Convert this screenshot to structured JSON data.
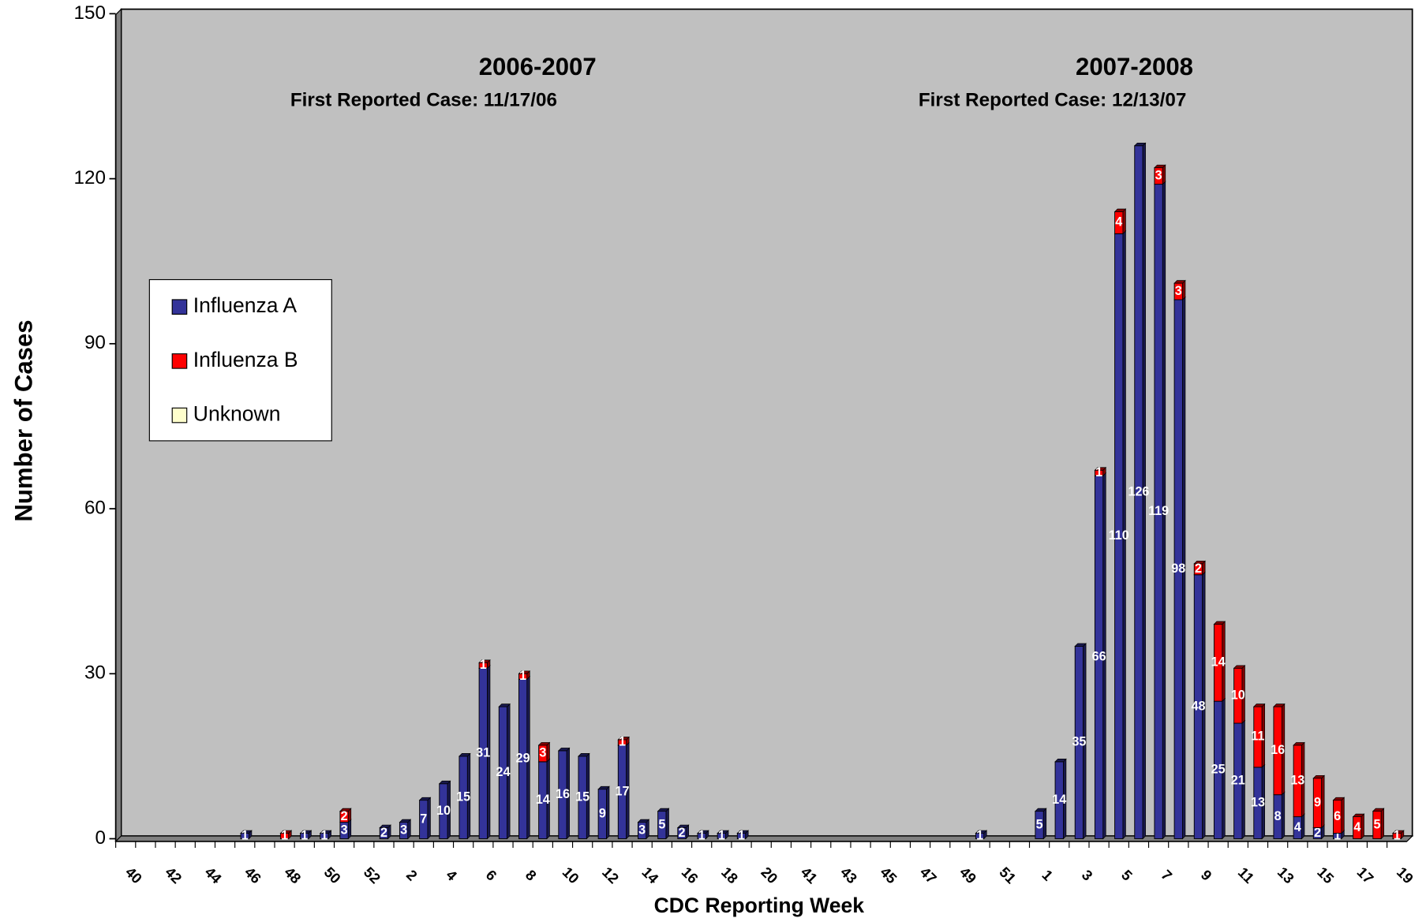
{
  "chart_data": {
    "type": "stacked_bar",
    "annotations": [
      "2006-2007",
      "First Reported Case:  11/17/06",
      "2007-2008",
      "First Reported Case:  12/13/07"
    ],
    "x_label": "CDC Reporting Week",
    "y_label": "Number of Cases",
    "categories": [
      "40",
      null,
      "42",
      null,
      "44",
      null,
      "46",
      null,
      "48",
      null,
      "50",
      null,
      "52",
      null,
      "2",
      null,
      "4",
      null,
      "6",
      null,
      "8",
      null,
      "10",
      null,
      "12",
      null,
      "14",
      null,
      "16",
      null,
      "18",
      null,
      "20",
      null,
      "41",
      null,
      "43",
      null,
      "45",
      null,
      "47",
      null,
      "49",
      null,
      "51",
      null,
      "1",
      null,
      "3",
      null,
      "5",
      null,
      "7",
      null,
      "9",
      null,
      "11",
      null,
      "13",
      null,
      "15",
      null,
      "17",
      null,
      "19"
    ],
    "series": [
      {
        "name": "Influenza A",
        "color": "#333399",
        "values": [
          0,
          0,
          0,
          0,
          0,
          0,
          1,
          0,
          0,
          1,
          1,
          3,
          0,
          2,
          3,
          7,
          10,
          15,
          31,
          24,
          29,
          14,
          16,
          15,
          9,
          17,
          3,
          5,
          2,
          1,
          1,
          1,
          0,
          0,
          0,
          0,
          0,
          0,
          0,
          0,
          0,
          0,
          0,
          1,
          0,
          0,
          5,
          14,
          35,
          66,
          110,
          126,
          119,
          98,
          48,
          25,
          21,
          13,
          8,
          4,
          2,
          1,
          0,
          0,
          0
        ]
      },
      {
        "name": "Influenza B",
        "color": "#ff0000",
        "values": [
          0,
          0,
          0,
          0,
          0,
          0,
          0,
          0,
          1,
          0,
          0,
          2,
          0,
          0,
          0,
          0,
          0,
          0,
          1,
          0,
          1,
          3,
          0,
          0,
          0,
          1,
          0,
          0,
          0,
          0,
          0,
          0,
          0,
          0,
          0,
          0,
          0,
          0,
          0,
          0,
          0,
          0,
          0,
          0,
          0,
          0,
          0,
          0,
          0,
          1,
          4,
          0,
          3,
          3,
          2,
          14,
          10,
          11,
          16,
          13,
          9,
          6,
          4,
          5,
          1
        ]
      },
      {
        "name": "Unknown",
        "color": "#ffffcc",
        "values": [
          0,
          0,
          0,
          0,
          0,
          0,
          0,
          0,
          0,
          0,
          0,
          0,
          0,
          0,
          0,
          0,
          0,
          0,
          0,
          0,
          0,
          0,
          0,
          0,
          0,
          0,
          0,
          0,
          0,
          0,
          0,
          0,
          0,
          0,
          0,
          0,
          0,
          0,
          0,
          0,
          0,
          0,
          0,
          0,
          0,
          0,
          0,
          0,
          0,
          0,
          0,
          0,
          0,
          0,
          0,
          0,
          0,
          0,
          0,
          0,
          0,
          0,
          0,
          0,
          0
        ]
      }
    ],
    "ylim": [
      0,
      150
    ],
    "yticks": [
      0,
      30,
      60,
      90,
      120,
      150
    ],
    "legend": "left",
    "grid": false
  }
}
